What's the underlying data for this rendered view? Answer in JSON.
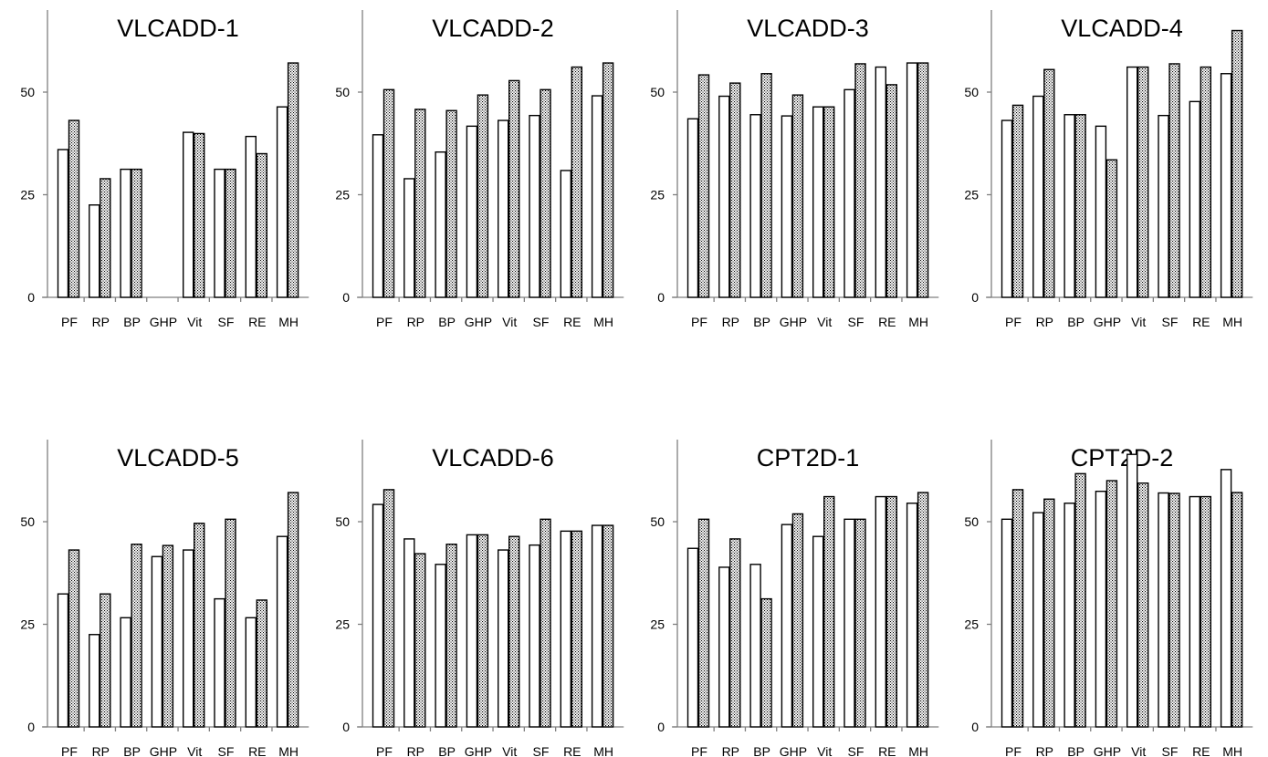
{
  "colors": {
    "series_a_fill": "#ffffff",
    "series_b_fill": "dotted-pattern",
    "bar_outline": "#000000",
    "axis": "#7f7f7f"
  },
  "chart_data": [
    {
      "type": "bar",
      "title": "VLCADD-1",
      "categories": [
        "PF",
        "RP",
        "BP",
        "GHP",
        "Vit",
        "SF",
        "RE",
        "MH"
      ],
      "yticks": [
        0,
        25,
        50
      ],
      "ylim": [
        0,
        70
      ],
      "series": [
        {
          "values": [
            36,
            22.5,
            31.2,
            null,
            40.2,
            31.2,
            39.2,
            46.4
          ]
        },
        {
          "values": [
            43.1,
            28.9,
            31.2,
            null,
            39.9,
            31.2,
            35.0,
            57.1
          ]
        }
      ]
    },
    {
      "type": "bar",
      "title": "VLCADD-2",
      "categories": [
        "PF",
        "RP",
        "BP",
        "GHP",
        "Vit",
        "SF",
        "RE",
        "MH"
      ],
      "yticks": [
        0,
        25,
        50
      ],
      "ylim": [
        0,
        70
      ],
      "series": [
        {
          "values": [
            39.6,
            28.9,
            35.4,
            41.7,
            43.1,
            44.3,
            30.9,
            49.1
          ]
        },
        {
          "values": [
            50.6,
            45.8,
            45.5,
            49.3,
            52.8,
            50.6,
            56.1,
            57.1
          ]
        }
      ]
    },
    {
      "type": "bar",
      "title": "VLCADD-3",
      "categories": [
        "PF",
        "RP",
        "BP",
        "GHP",
        "Vit",
        "SF",
        "RE",
        "MH"
      ],
      "yticks": [
        0,
        25,
        50
      ],
      "ylim": [
        0,
        70
      ],
      "series": [
        {
          "values": [
            43.5,
            49.0,
            44.5,
            44.2,
            46.4,
            50.6,
            56.1,
            57.1
          ]
        },
        {
          "values": [
            54.2,
            52.2,
            54.5,
            49.3,
            46.4,
            56.9,
            51.8,
            57.1
          ]
        }
      ]
    },
    {
      "type": "bar",
      "title": "VLCADD-4",
      "categories": [
        "PF",
        "RP",
        "BP",
        "GHP",
        "Vit",
        "SF",
        "RE",
        "MH"
      ],
      "yticks": [
        0,
        25,
        50
      ],
      "ylim": [
        0,
        70
      ],
      "series": [
        {
          "values": [
            43.1,
            49.0,
            44.5,
            41.7,
            56.1,
            44.3,
            47.7,
            54.5
          ]
        },
        {
          "values": [
            46.8,
            55.5,
            44.5,
            33.5,
            56.1,
            56.9,
            56.1,
            65.0
          ]
        }
      ]
    },
    {
      "type": "bar",
      "title": "VLCADD-5",
      "categories": [
        "PF",
        "RP",
        "BP",
        "GHP",
        "Vit",
        "SF",
        "RE",
        "MH"
      ],
      "yticks": [
        0,
        25,
        50
      ],
      "ylim": [
        0,
        70
      ],
      "series": [
        {
          "values": [
            32.4,
            22.5,
            26.6,
            41.5,
            43.1,
            31.2,
            26.6,
            46.4
          ]
        },
        {
          "values": [
            43.1,
            32.4,
            44.5,
            44.2,
            49.6,
            50.6,
            30.9,
            57.1
          ]
        }
      ]
    },
    {
      "type": "bar",
      "title": "VLCADD-6",
      "categories": [
        "PF",
        "RP",
        "BP",
        "GHP",
        "Vit",
        "SF",
        "RE",
        "MH"
      ],
      "yticks": [
        0,
        25,
        50
      ],
      "ylim": [
        0,
        70
      ],
      "series": [
        {
          "values": [
            54.2,
            45.8,
            39.6,
            46.8,
            43.1,
            44.3,
            47.7,
            49.1
          ]
        },
        {
          "values": [
            57.8,
            42.2,
            44.5,
            46.8,
            46.4,
            50.6,
            47.7,
            49.1
          ]
        }
      ]
    },
    {
      "type": "bar",
      "title": "CPT2D-1",
      "categories": [
        "PF",
        "RP",
        "BP",
        "GHP",
        "Vit",
        "SF",
        "RE",
        "MH"
      ],
      "yticks": [
        0,
        25,
        50
      ],
      "ylim": [
        0,
        70
      ],
      "series": [
        {
          "values": [
            43.5,
            38.9,
            39.6,
            49.3,
            46.4,
            50.6,
            56.1,
            54.5
          ]
        },
        {
          "values": [
            50.6,
            45.8,
            31.2,
            51.9,
            56.1,
            50.6,
            56.1,
            57.1
          ]
        }
      ]
    },
    {
      "type": "bar",
      "title": "CPT2D-2",
      "categories": [
        "PF",
        "RP",
        "BP",
        "GHP",
        "Vit",
        "SF",
        "RE",
        "MH"
      ],
      "yticks": [
        0,
        25,
        50
      ],
      "ylim": [
        0,
        70
      ],
      "series": [
        {
          "values": [
            50.6,
            52.2,
            54.5,
            57.4,
            66.4,
            57.0,
            56.1,
            62.7
          ]
        },
        {
          "values": [
            57.8,
            55.5,
            61.7,
            60.0,
            59.4,
            56.9,
            56.1,
            57.1
          ]
        }
      ]
    }
  ]
}
